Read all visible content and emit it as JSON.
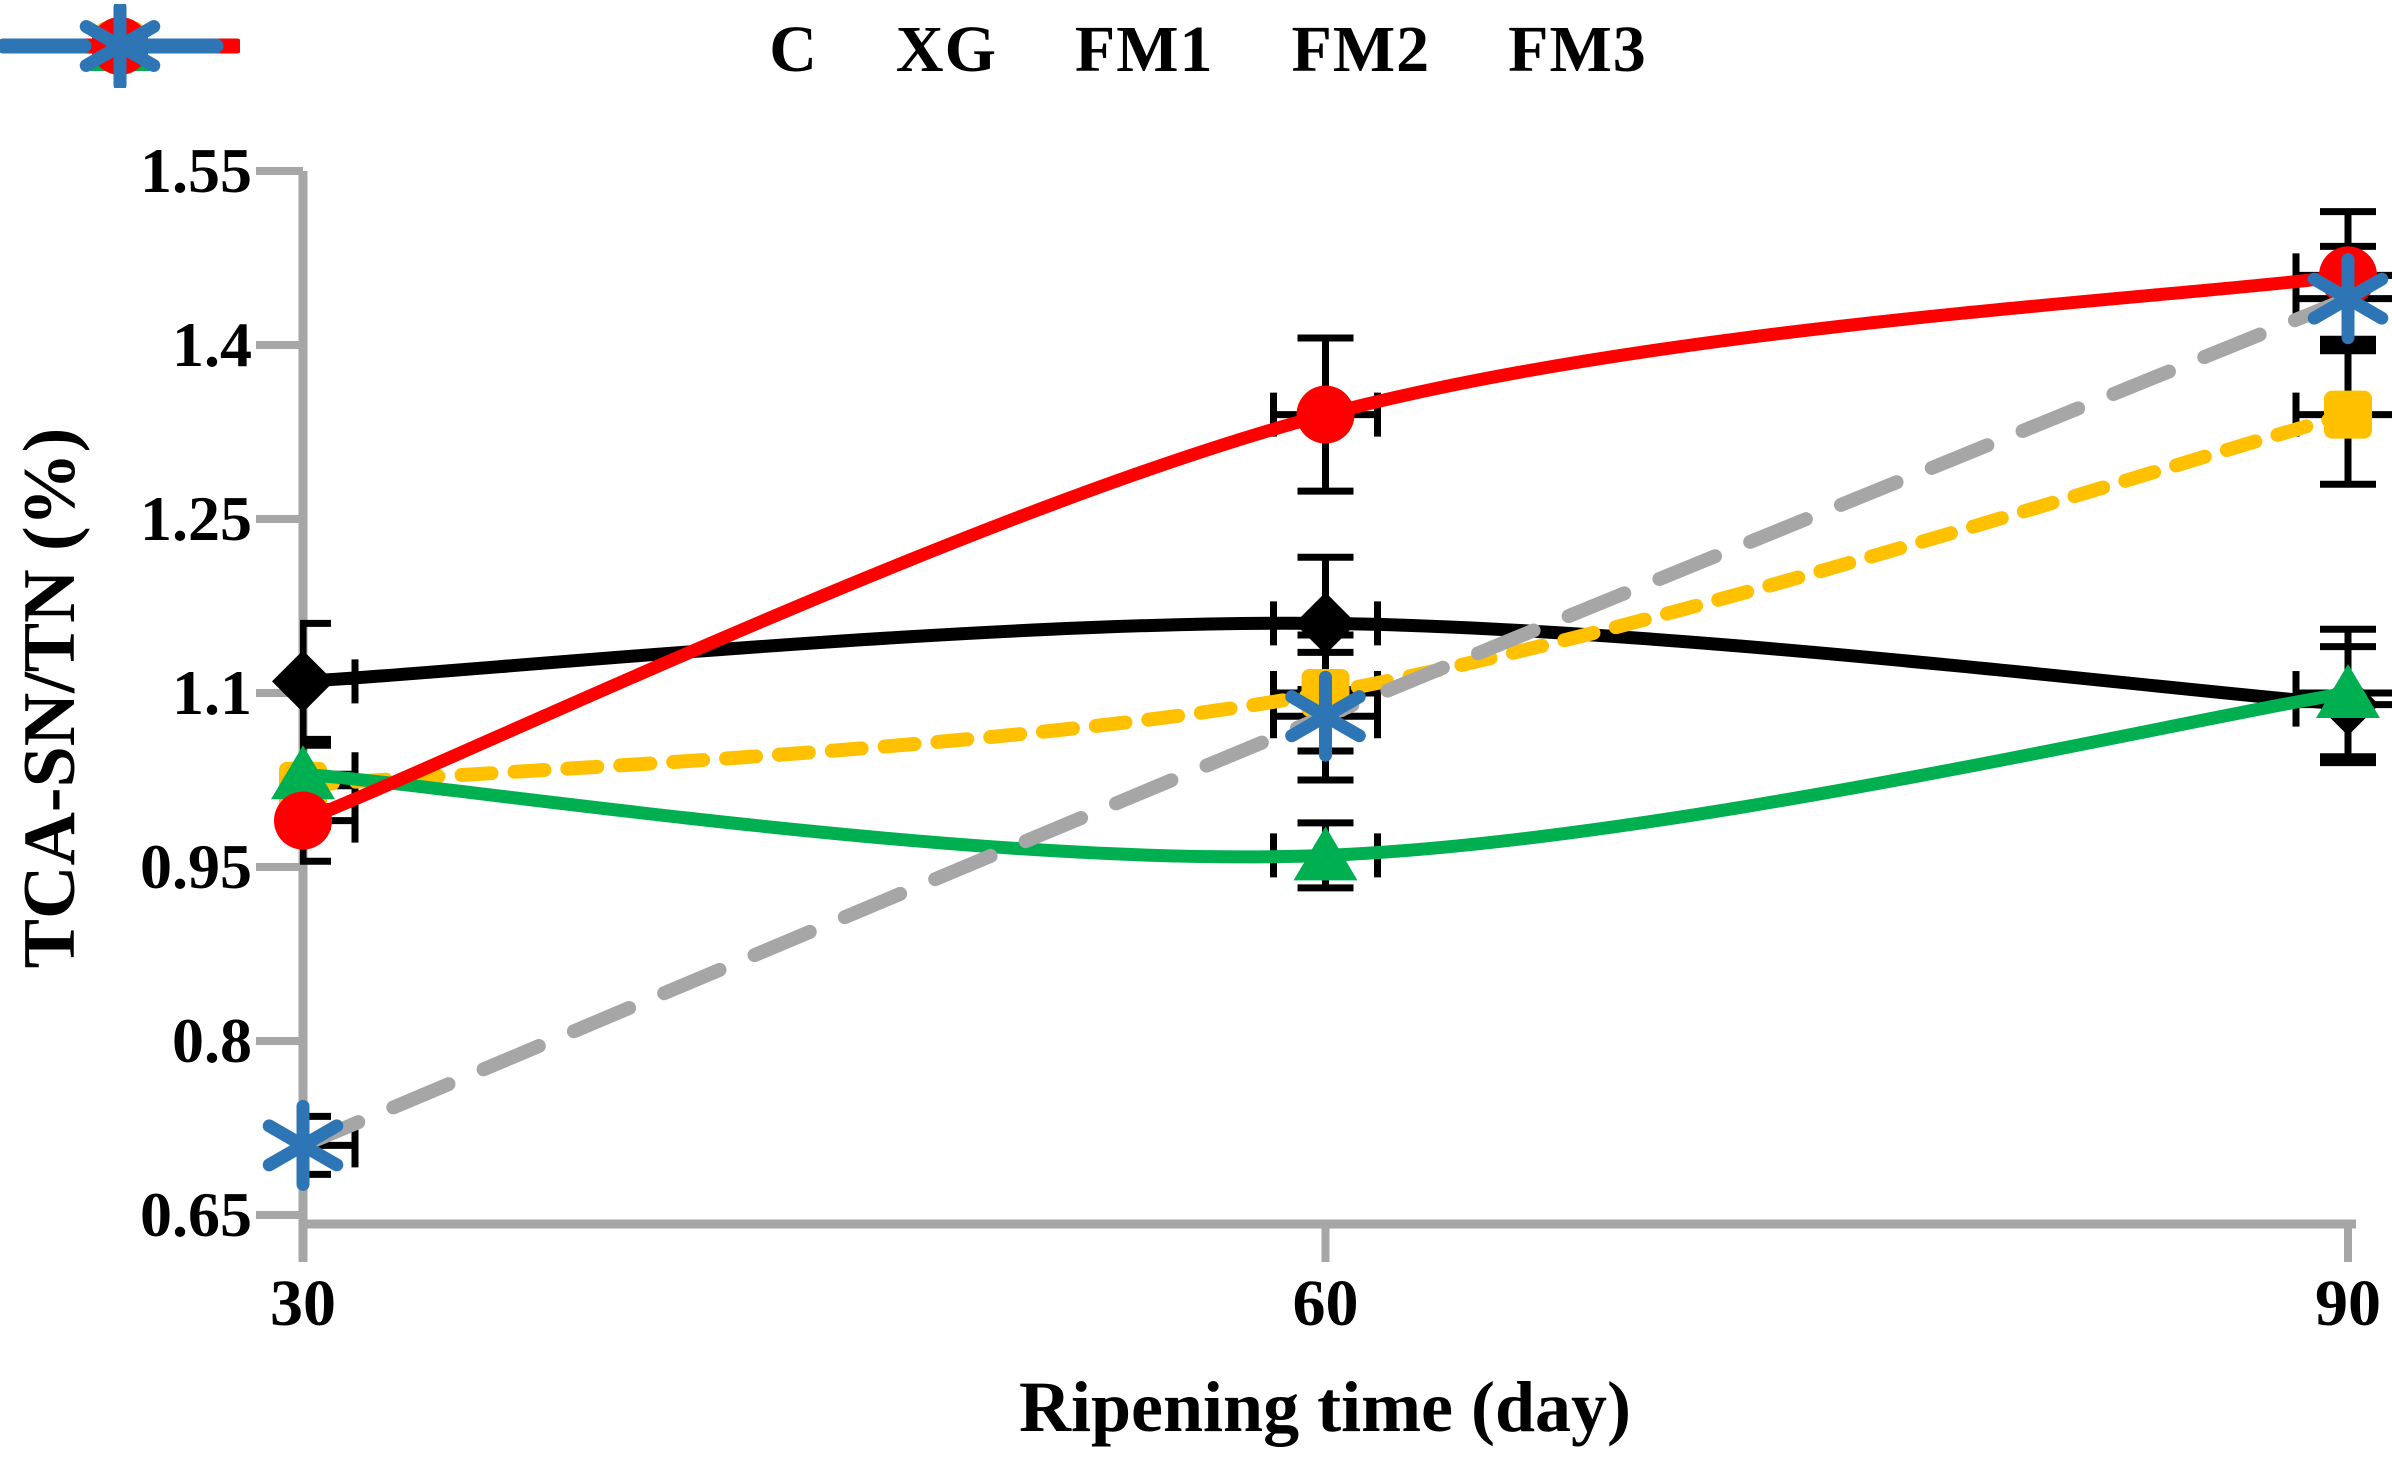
{
  "chart_data": {
    "type": "line",
    "title": "",
    "xlabel": "Ripening time (day)",
    "ylabel": "TCA-SN/TN (%)",
    "x_categories": [
      "30",
      "60",
      "90"
    ],
    "x_values": [
      30,
      60,
      90
    ],
    "y_ticks": [
      "1.55",
      "1.4",
      "1.25",
      "1.1",
      "0.95",
      "0.8",
      "0.65"
    ],
    "y_tick_values": [
      1.55,
      1.4,
      1.25,
      1.1,
      0.95,
      0.8,
      0.65
    ],
    "ylim": [
      0.65,
      1.55
    ],
    "grid": false,
    "legend_position": "top",
    "axis_color": "#A6A6A6",
    "error_bar_color": "#000000",
    "background_color": "#FFFFFF",
    "series": [
      {
        "name": "C",
        "marker": "diamond",
        "marker_color": "#000000",
        "line_color": "#000000",
        "legend_line_color": "#000000",
        "line_style": "solid",
        "values": [
          1.11,
          1.16,
          1.09
        ],
        "yerr": [
          0.05,
          0.057,
          0.05
        ]
      },
      {
        "name": "XG",
        "marker": "square",
        "marker_color": "#FFC000",
        "line_color": "#FFC000",
        "legend_line_color": "#FFC000",
        "line_style": "dashed",
        "values": [
          1.02,
          1.1,
          1.34
        ],
        "yerr": [
          0.035,
          0.05,
          0.06
        ]
      },
      {
        "name": "FM1",
        "marker": "triangle",
        "marker_color": "#00B050",
        "line_color": "#00B050",
        "legend_line_color": "#00B050",
        "line_style": "solid",
        "values": [
          1.03,
          0.96,
          1.1
        ],
        "yerr": [
          0.028,
          0.028,
          0.055
        ]
      },
      {
        "name": "FM2",
        "marker": "circle",
        "marker_color": "#FF0000",
        "line_color": "#FF0000",
        "legend_line_color": "#FF0000",
        "line_style": "solid",
        "values": [
          0.99,
          1.34,
          1.46
        ],
        "yerr": [
          0.035,
          0.066,
          0.055
        ]
      },
      {
        "name": "FM3",
        "marker": "asterisk",
        "marker_color": "#2E75B6",
        "line_color": "#A6A6A6",
        "legend_line_color": "#2E75B6",
        "line_style": "long-dash",
        "values": [
          0.71,
          1.08,
          1.44
        ],
        "yerr": [
          0.025,
          0.055,
          0.045
        ]
      }
    ]
  }
}
